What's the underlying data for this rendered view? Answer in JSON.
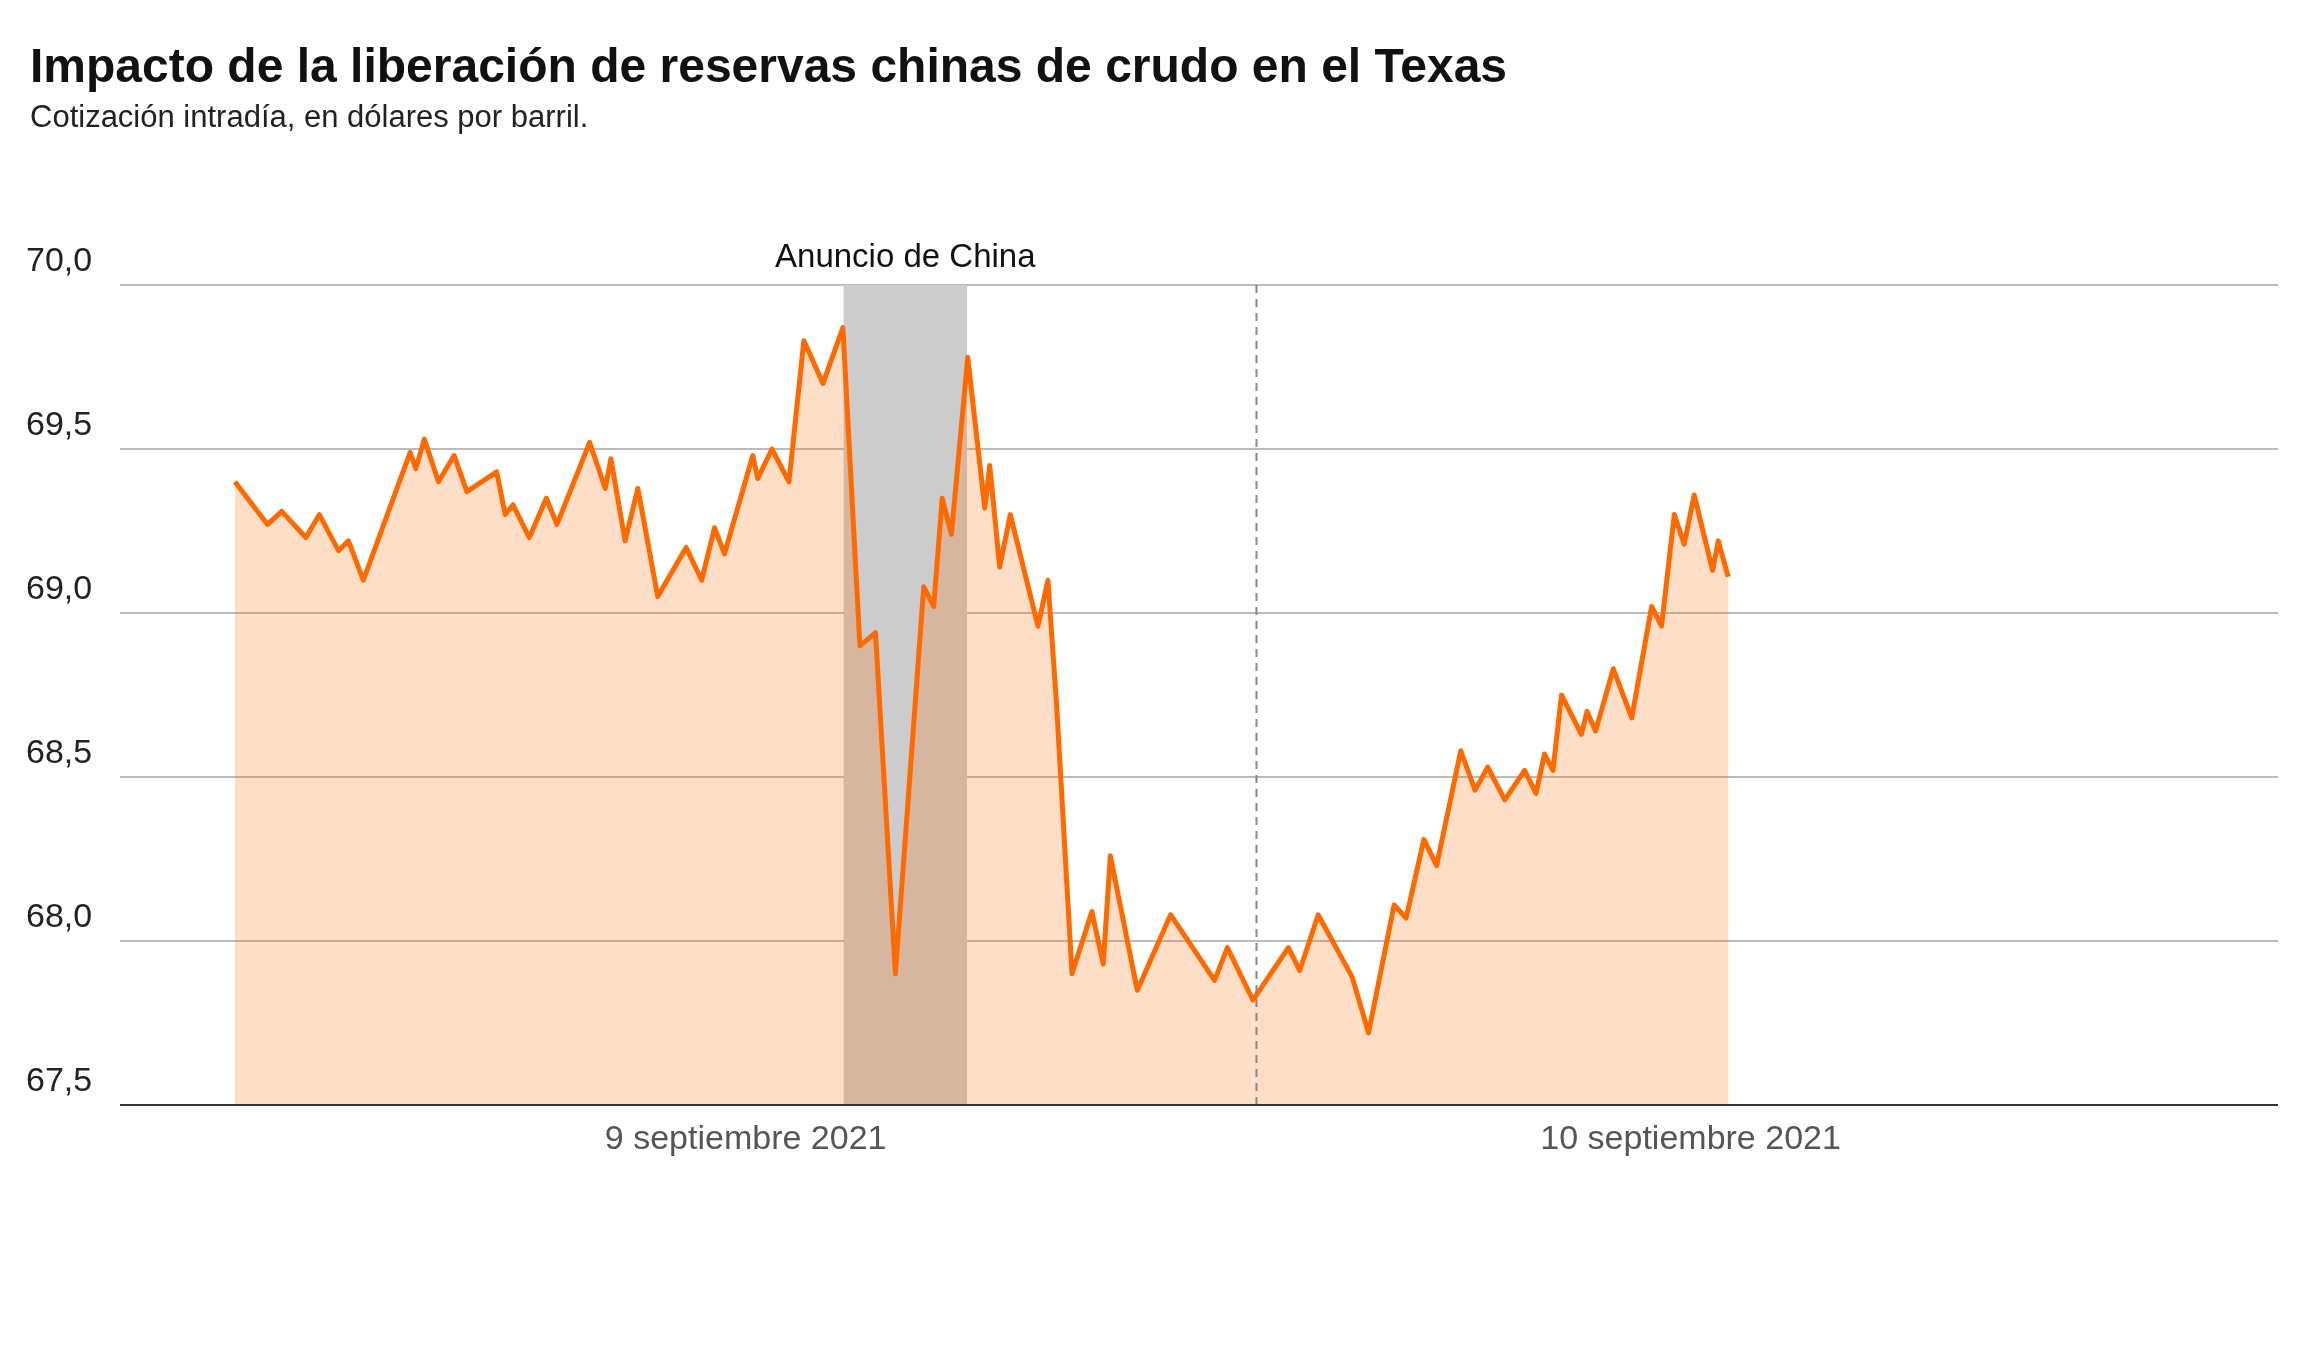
{
  "chart_data": {
    "type": "area",
    "title": "Impacto de la liberación de reservas chinas de crudo en el Texas",
    "subtitle": "Cotización intradía, en dólares por barril.",
    "x": [
      "2021-09-09T00:00",
      "2021-09-09T00:46",
      "2021-09-09T01:06",
      "2021-09-09T01:40",
      "2021-09-09T01:59",
      "2021-09-09T02:26",
      "2021-09-09T02:40",
      "2021-09-09T03:01",
      "2021-09-09T04:07",
      "2021-09-09T04:15",
      "2021-09-09T04:27",
      "2021-09-09T04:47",
      "2021-09-09T05:09",
      "2021-09-09T05:27",
      "2021-09-09T06:09",
      "2021-09-09T06:21",
      "2021-09-09T06:32",
      "2021-09-09T06:55",
      "2021-09-09T07:19",
      "2021-09-09T07:34",
      "2021-09-09T08:20",
      "2021-09-09T08:42",
      "2021-09-09T08:50",
      "2021-09-09T09:10",
      "2021-09-09T09:28",
      "2021-09-09T09:56",
      "2021-09-09T10:36",
      "2021-09-09T10:58",
      "2021-09-09T11:16",
      "2021-09-09T11:30",
      "2021-09-09T12:10",
      "2021-09-09T12:17",
      "2021-09-09T12:37",
      "2021-09-09T13:01",
      "2021-09-09T13:22",
      "2021-09-09T13:49",
      "2021-09-09T14:17",
      "2021-09-09T14:41",
      "2021-09-09T15:03",
      "2021-09-09T15:31",
      "2021-09-09T16:11",
      "2021-09-09T16:25",
      "2021-09-09T16:37",
      "2021-09-09T16:50",
      "2021-09-09T17:13",
      "2021-09-09T17:37",
      "2021-09-09T17:44",
      "2021-09-09T17:58",
      "2021-09-09T18:13",
      "2021-09-09T18:52",
      "2021-09-09T19:06",
      "2021-09-09T19:18",
      "2021-09-09T19:40",
      "2021-09-09T20:08",
      "2021-09-09T20:24",
      "2021-09-09T20:34",
      "2021-09-09T21:12",
      "2021-09-09T21:59",
      "2021-09-09T23:01",
      "2021-09-09T23:19",
      "2021-09-09T23:55",
      "2021-09-10T00:45",
      "2021-09-10T01:01",
      "2021-09-10T01:27",
      "2021-09-10T02:15",
      "2021-09-10T02:38",
      "2021-09-10T03:14",
      "2021-09-10T03:31",
      "2021-09-10T03:56",
      "2021-09-10T04:14",
      "2021-09-10T04:48",
      "2021-09-10T05:08",
      "2021-09-10T05:26",
      "2021-09-10T05:50",
      "2021-09-10T06:18",
      "2021-09-10T06:34",
      "2021-09-10T06:46",
      "2021-09-10T06:58",
      "2021-09-10T07:10",
      "2021-09-10T07:38",
      "2021-09-10T07:46",
      "2021-09-10T07:58",
      "2021-09-10T08:23",
      "2021-09-10T08:49",
      "2021-09-10T09:17",
      "2021-09-10T09:31",
      "2021-09-10T09:49",
      "2021-09-10T10:03",
      "2021-09-10T10:17",
      "2021-09-10T10:43",
      "2021-09-10T10:51",
      "2021-09-10T11:05"
    ],
    "values": [
      69.4,
      69.27,
      69.31,
      69.23,
      69.3,
      69.19,
      69.22,
      69.1,
      69.49,
      69.44,
      69.53,
      69.4,
      69.48,
      69.37,
      69.43,
      69.3,
      69.33,
      69.23,
      69.35,
      69.27,
      69.52,
      69.38,
      69.47,
      69.22,
      69.38,
      69.05,
      69.2,
      69.1,
      69.26,
      69.18,
      69.48,
      69.41,
      69.5,
      69.4,
      69.83,
      69.7,
      69.87,
      68.9,
      68.94,
      67.9,
      69.08,
      69.02,
      69.35,
      69.24,
      69.78,
      69.32,
      69.45,
      69.14,
      69.3,
      68.96,
      69.1,
      68.73,
      67.9,
      68.09,
      67.93,
      68.26,
      67.85,
      68.08,
      67.88,
      67.98,
      67.82,
      67.98,
      67.91,
      68.08,
      67.89,
      67.72,
      68.11,
      68.07,
      68.31,
      68.23,
      68.58,
      68.46,
      68.53,
      68.43,
      68.52,
      68.45,
      68.57,
      68.52,
      68.75,
      68.63,
      68.7,
      68.64,
      68.83,
      68.68,
      69.02,
      68.96,
      69.3,
      69.21,
      69.36,
      69.13,
      69.22,
      69.11
    ],
    "color": "#ff6a00",
    "xlim": [
      "2021-09-08T21:18",
      "2021-09-11T00:00"
    ],
    "xticks": [
      {
        "value": "2021-09-09T12:00",
        "label": "9 septiembre 2021"
      },
      {
        "value": "2021-09-10T10:12",
        "label": "10 septiembre 2021"
      }
    ],
    "ylim": [
      67.5,
      70
    ],
    "yticks": [
      {
        "value": 67.5,
        "label": "67,5"
      },
      {
        "value": 68,
        "label": "68,0"
      },
      {
        "value": 68.5,
        "label": "68,5"
      },
      {
        "value": 69,
        "label": "69,0"
      },
      {
        "value": 69.5,
        "label": "69,5"
      },
      {
        "value": 70,
        "label": "70,0"
      }
    ],
    "grid": "y",
    "bands": [
      {
        "axis": "x",
        "from": "2021-09-09T14:18",
        "to": "2021-09-09T17:12",
        "label": "Anuncio de China",
        "color": "#cccccc"
      }
    ],
    "ref_lines": [
      {
        "axis": "x",
        "value": "2021-09-10T00:00",
        "line_style": "dashed",
        "color": "#888888"
      }
    ]
  }
}
